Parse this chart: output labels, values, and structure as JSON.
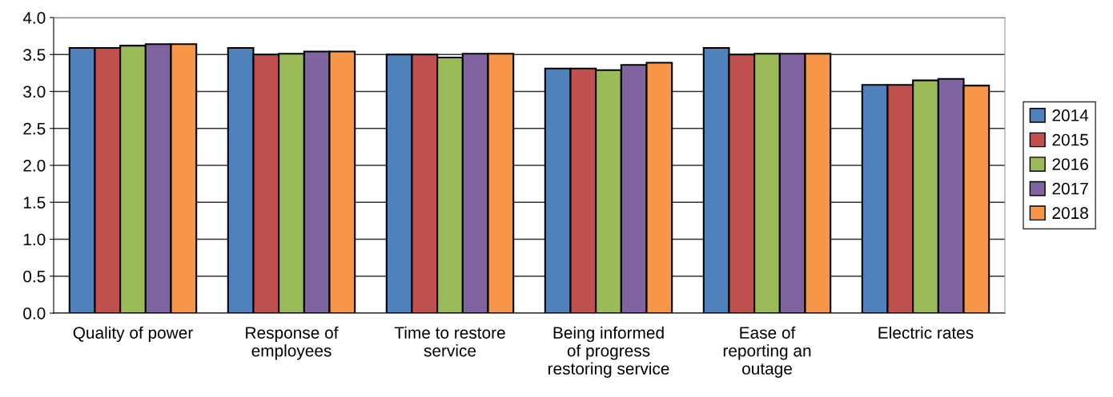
{
  "chart_data": {
    "type": "bar",
    "categories": [
      "Quality of power",
      "Response of\nemployees",
      "Time to restore\nservice",
      "Being informed\nof progress\nrestoring service",
      "Ease of\nreporting an\noutage",
      "Electric rates"
    ],
    "series": [
      {
        "name": "2014",
        "color": "#4f81bd",
        "values": [
          3.59,
          3.59,
          3.5,
          3.31,
          3.59,
          3.09
        ]
      },
      {
        "name": "2015",
        "color": "#c0504d",
        "values": [
          3.59,
          3.5,
          3.5,
          3.31,
          3.5,
          3.09
        ]
      },
      {
        "name": "2016",
        "color": "#9bbb59",
        "values": [
          3.62,
          3.51,
          3.46,
          3.29,
          3.51,
          3.15
        ]
      },
      {
        "name": "2017",
        "color": "#8064a2",
        "values": [
          3.64,
          3.54,
          3.51,
          3.36,
          3.51,
          3.17
        ]
      },
      {
        "name": "2018",
        "color": "#f79646",
        "values": [
          3.64,
          3.54,
          3.51,
          3.39,
          3.51,
          3.08
        ]
      }
    ],
    "ylim": [
      0,
      4
    ],
    "yticks": [
      {
        "value": 0,
        "label": "0.0"
      },
      {
        "value": 0.5,
        "label": "0.5"
      },
      {
        "value": 1,
        "label": "1.0"
      },
      {
        "value": 1.5,
        "label": "1.5"
      },
      {
        "value": 2,
        "label": "2.0"
      },
      {
        "value": 2.5,
        "label": "2.5"
      },
      {
        "value": 3,
        "label": "3.0"
      },
      {
        "value": 3.5,
        "label": "3.5"
      },
      {
        "value": 4,
        "label": "4.0"
      }
    ],
    "grid": "y",
    "legend": "right"
  }
}
